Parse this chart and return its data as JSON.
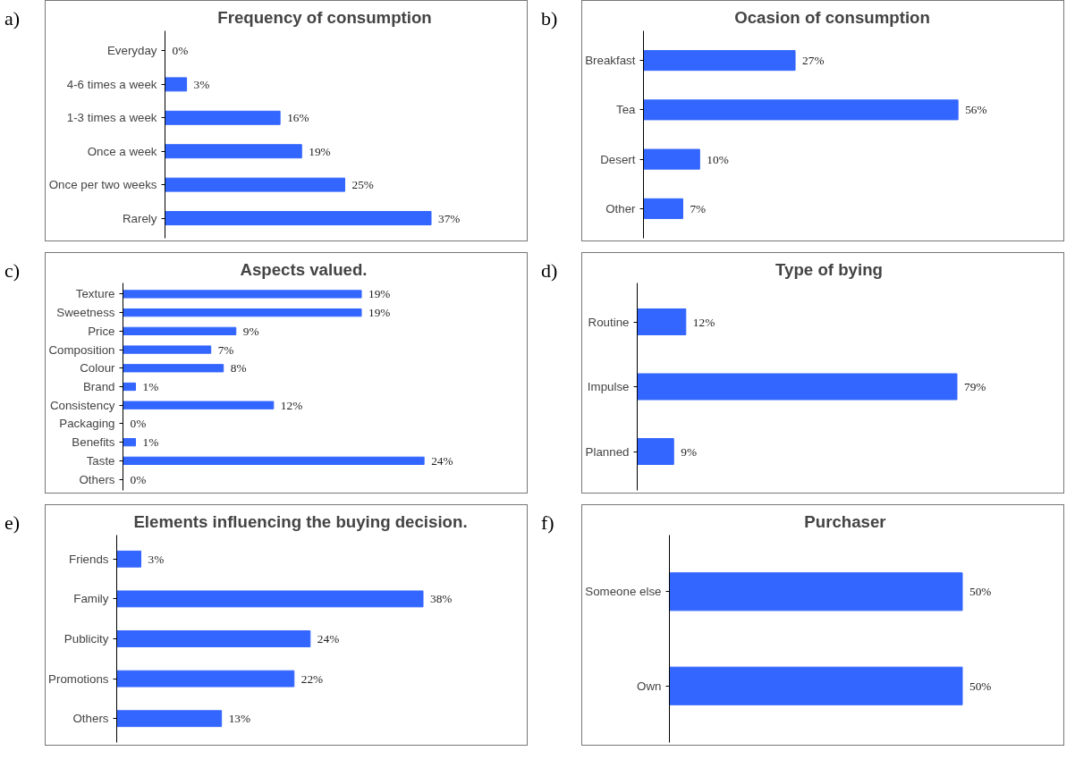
{
  "chart_data": [
    {
      "type": "bar",
      "orientation": "horizontal",
      "title": "Frequency of consumption",
      "annotations": [
        "a)"
      ],
      "categories": [
        "Everyday",
        "4-6 times a week",
        "1-3 times a week",
        "Once a week",
        "Once per two weeks",
        "Rarely"
      ],
      "values": [
        0,
        3,
        16,
        19,
        25,
        37
      ],
      "value_labels": [
        "0%",
        "3%",
        "16%",
        "19%",
        "25%",
        "37%"
      ],
      "color": "#3366ff",
      "grid": false
    },
    {
      "type": "bar",
      "orientation": "horizontal",
      "title": "Ocasion of consumption",
      "annotations": [
        "b)"
      ],
      "categories": [
        "Breakfast",
        "Tea",
        "Desert",
        "Other"
      ],
      "values": [
        27,
        56,
        10,
        7
      ],
      "value_labels": [
        "27%",
        "56%",
        "10%",
        "7%"
      ],
      "color": "#3366ff",
      "grid": false
    },
    {
      "type": "bar",
      "orientation": "horizontal",
      "title": "Aspects valued.",
      "annotations": [
        "c)"
      ],
      "categories": [
        "Texture",
        "Sweetness",
        "Price",
        "Composition",
        "Colour",
        "Brand",
        "Consistency",
        "Packaging",
        "Benefits",
        "Taste",
        "Others"
      ],
      "values": [
        19,
        19,
        9,
        7,
        8,
        1,
        12,
        0,
        1,
        24,
        0
      ],
      "value_labels": [
        "19%",
        "19%",
        "9%",
        "7%",
        "8%",
        "1%",
        "12%",
        "0%",
        "1%",
        "24%",
        "0%"
      ],
      "color": "#3366ff",
      "grid": false
    },
    {
      "type": "bar",
      "orientation": "horizontal",
      "title": "Type of bying",
      "annotations": [
        "d)"
      ],
      "categories": [
        "Routine",
        "Impulse",
        "Planned"
      ],
      "values": [
        12,
        79,
        9
      ],
      "value_labels": [
        "12%",
        "79%",
        "9%"
      ],
      "color": "#3366ff",
      "grid": false
    },
    {
      "type": "bar",
      "orientation": "horizontal",
      "title": "Elements influencing the buying decision.",
      "annotations": [
        "e)"
      ],
      "categories": [
        "Friends",
        "Family",
        "Publicity",
        "Promotions",
        "Others"
      ],
      "values": [
        3,
        38,
        24,
        22,
        13
      ],
      "value_labels": [
        "3%",
        "38%",
        "24%",
        "22%",
        "13%"
      ],
      "color": "#3366ff",
      "grid": false
    },
    {
      "type": "bar",
      "orientation": "horizontal",
      "title": "Purchaser",
      "annotations": [
        "f)"
      ],
      "categories": [
        "Someone else",
        "Own"
      ],
      "values": [
        50,
        50
      ],
      "value_labels": [
        "50%",
        "50%"
      ],
      "color": "#3366ff",
      "grid": false
    }
  ]
}
